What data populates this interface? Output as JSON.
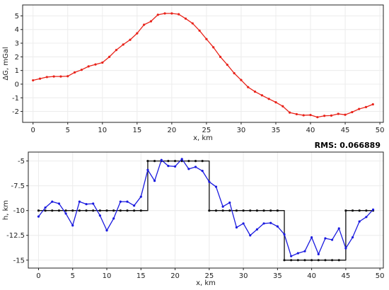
{
  "chart_data": [
    {
      "type": "line",
      "xlabel": "x, km",
      "ylabel": "ΔG, mGal",
      "xlim": [
        -1.5,
        50.5
      ],
      "ylim": [
        -2.8,
        5.8
      ],
      "xticks": [
        0,
        5,
        10,
        15,
        20,
        25,
        30,
        35,
        40,
        45,
        50
      ],
      "yticks": [
        -2,
        -1,
        0,
        1,
        2,
        3,
        4,
        5
      ],
      "grid": true,
      "series": [
        {
          "color": "#e8231a",
          "marker": "dot",
          "x": [
            0,
            1,
            2,
            3,
            4,
            5,
            6,
            7,
            8,
            9,
            10,
            11,
            12,
            13,
            14,
            15,
            16,
            17,
            18,
            19,
            20,
            21,
            22,
            23,
            24,
            25,
            26,
            27,
            28,
            29,
            30,
            31,
            32,
            33,
            34,
            35,
            36,
            37,
            38,
            39,
            40,
            41,
            42,
            43,
            44,
            45,
            46,
            47,
            48,
            49
          ],
          "y": [
            0.28,
            0.4,
            0.52,
            0.56,
            0.56,
            0.58,
            0.86,
            1.05,
            1.3,
            1.44,
            1.58,
            2.0,
            2.5,
            2.9,
            3.25,
            3.72,
            4.35,
            4.6,
            5.08,
            5.18,
            5.18,
            5.12,
            4.8,
            4.45,
            3.92,
            3.3,
            2.7,
            2.0,
            1.42,
            0.8,
            0.3,
            -0.22,
            -0.55,
            -0.82,
            -1.08,
            -1.33,
            -1.62,
            -2.08,
            -2.2,
            -2.28,
            -2.26,
            -2.42,
            -2.32,
            -2.3,
            -2.18,
            -2.24,
            -2.05,
            -1.82,
            -1.68,
            -1.48
          ]
        }
      ]
    },
    {
      "type": "line",
      "annotation": "RMS: 0.066889",
      "xlabel": "x, km",
      "ylabel": "h, km",
      "xlim": [
        -1.5,
        50.5
      ],
      "ylim": [
        -15.8,
        -4.1
      ],
      "xticks": [
        0,
        5,
        10,
        15,
        20,
        25,
        30,
        35,
        40,
        45,
        50
      ],
      "yticks": [
        -15,
        -12.5,
        -10,
        -7.5,
        -5
      ],
      "yticklabels": [
        "-15",
        "-12.5",
        "-10",
        "-7.5",
        "-5"
      ],
      "grid": true,
      "series": [
        {
          "color": "#111111",
          "marker": "dot",
          "step": true,
          "x": [
            0,
            1,
            2,
            3,
            4,
            5,
            6,
            7,
            8,
            9,
            10,
            11,
            12,
            13,
            14,
            15,
            16,
            17,
            18,
            19,
            20,
            21,
            22,
            23,
            24,
            25,
            26,
            27,
            28,
            29,
            30,
            31,
            32,
            33,
            34,
            35,
            36,
            37,
            38,
            39,
            40,
            41,
            42,
            43,
            44,
            45,
            46,
            47,
            48,
            49
          ],
          "y": [
            -10,
            -10,
            -10,
            -10,
            -10,
            -10,
            -10,
            -10,
            -10,
            -10,
            -10,
            -10,
            -10,
            -10,
            -10,
            -10,
            -5,
            -5,
            -5,
            -5,
            -5,
            -5,
            -5,
            -5,
            -5,
            -10,
            -10,
            -10,
            -10,
            -10,
            -10,
            -10,
            -10,
            -10,
            -10,
            -10,
            -15,
            -15,
            -15,
            -15,
            -15,
            -15,
            -15,
            -15,
            -15,
            -10,
            -10,
            -10,
            -10,
            -10
          ]
        },
        {
          "color": "#1a1adf",
          "marker": "dot",
          "x": [
            0,
            1,
            2,
            3,
            4,
            5,
            6,
            7,
            8,
            9,
            10,
            11,
            12,
            13,
            14,
            15,
            16,
            17,
            18,
            19,
            20,
            21,
            22,
            23,
            24,
            25,
            26,
            27,
            28,
            29,
            30,
            31,
            32,
            33,
            34,
            35,
            36,
            37,
            38,
            39,
            40,
            41,
            42,
            43,
            44,
            45,
            46,
            47,
            48,
            49
          ],
          "y": [
            -10.6,
            -9.7,
            -9.1,
            -9.3,
            -10.3,
            -11.5,
            -9.1,
            -9.35,
            -9.3,
            -10.5,
            -12.0,
            -10.8,
            -9.1,
            -9.1,
            -9.5,
            -8.6,
            -5.9,
            -7.0,
            -4.9,
            -5.5,
            -5.55,
            -4.8,
            -5.8,
            -5.6,
            -6.0,
            -7.1,
            -7.6,
            -9.6,
            -9.2,
            -11.7,
            -11.3,
            -12.5,
            -11.9,
            -11.3,
            -11.25,
            -11.6,
            -12.4,
            -14.6,
            -14.3,
            -14.1,
            -12.7,
            -14.4,
            -12.8,
            -12.95,
            -11.8,
            -13.8,
            -12.7,
            -11.1,
            -10.65,
            -9.9
          ]
        }
      ]
    }
  ]
}
